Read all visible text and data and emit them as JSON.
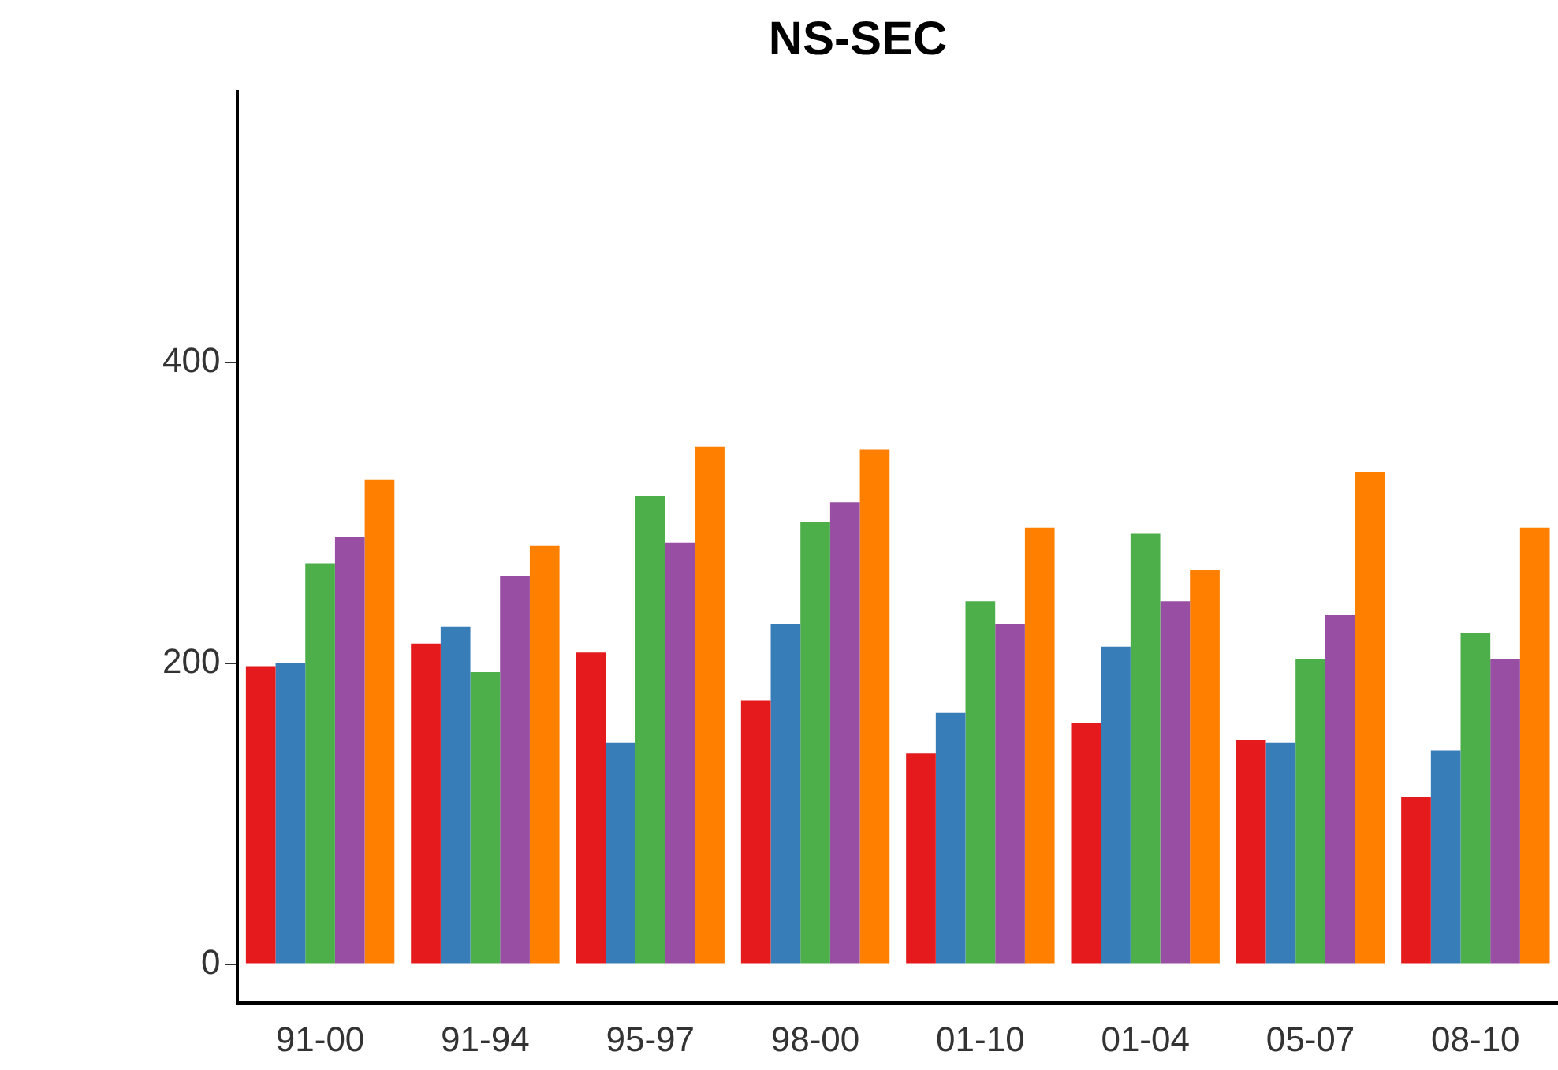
{
  "chart_data": {
    "type": "bar",
    "title": "NS-SEC",
    "categories": [
      "91-00",
      "91-94",
      "95-97",
      "98-00",
      "01-10",
      "01-04",
      "05-07",
      "08-10"
    ],
    "series": [
      {
        "color": "#e41a1c",
        "values": [
          198,
          213,
          207,
          175,
          140,
          160,
          149,
          111
        ]
      },
      {
        "color": "#377eb8",
        "values": [
          200,
          224,
          147,
          226,
          167,
          211,
          147,
          142
        ]
      },
      {
        "color": "#4daf4a",
        "values": [
          266,
          194,
          311,
          294,
          241,
          286,
          203,
          220
        ]
      },
      {
        "color": "#984ea3",
        "values": [
          284,
          258,
          280,
          307,
          226,
          241,
          232,
          203
        ]
      },
      {
        "color": "#ff7f00",
        "values": [
          322,
          278,
          344,
          342,
          290,
          262,
          327,
          290
        ]
      }
    ],
    "ylim": [
      -26,
      580
    ],
    "yticks": [
      0,
      200,
      400
    ],
    "grid": false,
    "legend": false
  }
}
